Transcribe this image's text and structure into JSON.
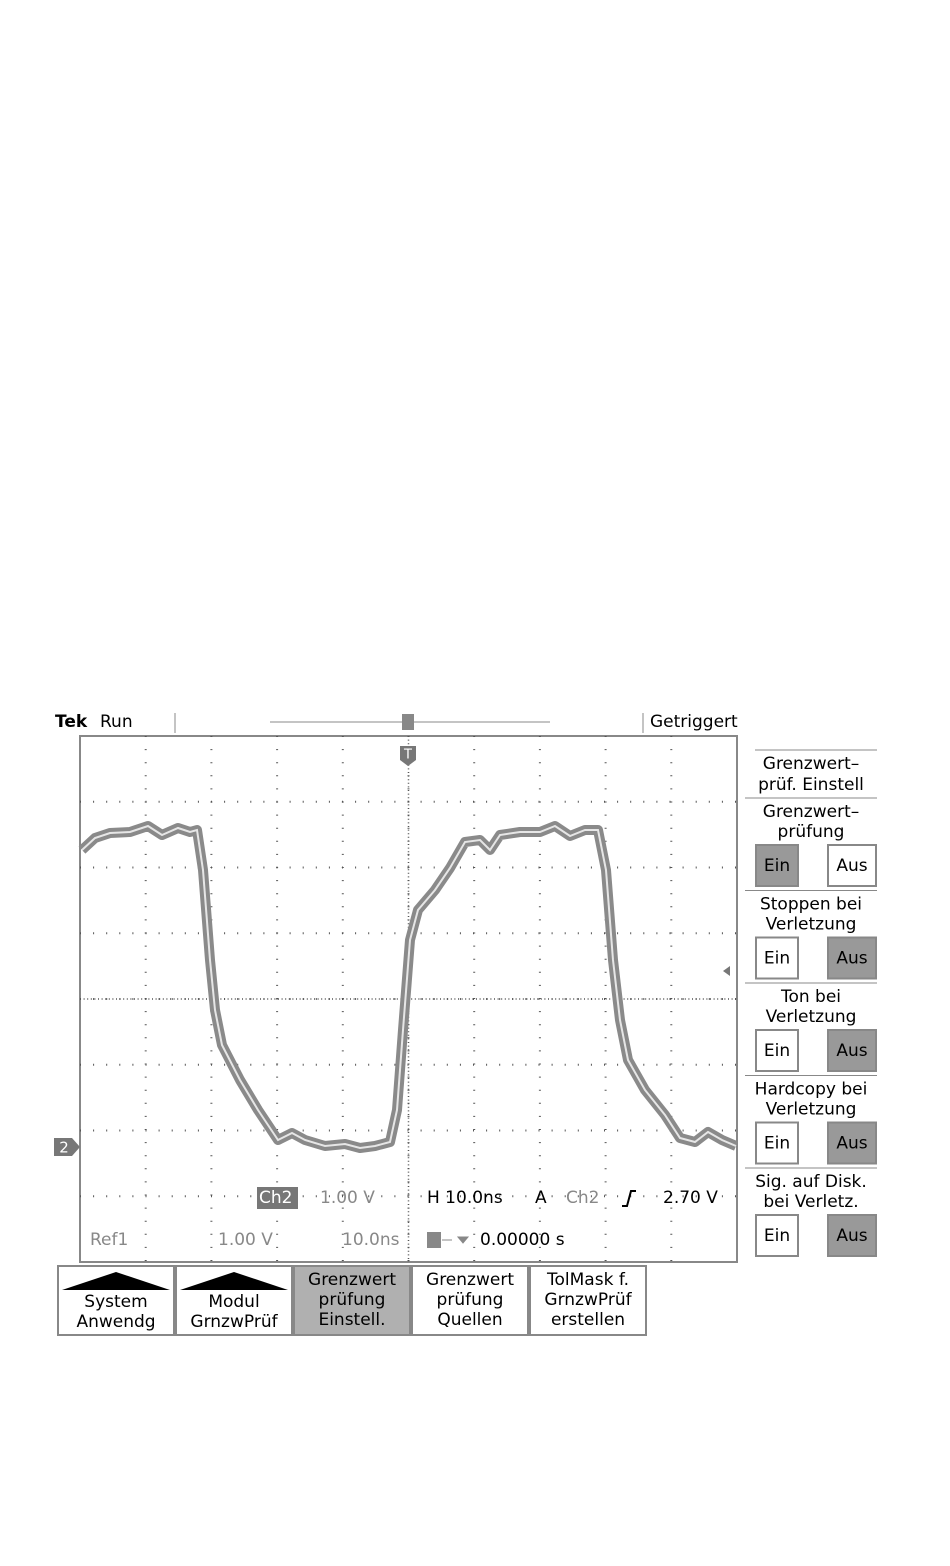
{
  "header": {
    "brand": "Tek",
    "status": "Run",
    "trigger_state": "Getriggert"
  },
  "markers": {
    "ground": "2",
    "trigger": "T"
  },
  "readouts": {
    "row1": [
      "Ch2",
      "1.00 V",
      "H 10.0ns",
      "A",
      "Ch2",
      "2.70 V"
    ],
    "row2": [
      "Ref1",
      "1.00 V",
      "10.0ns",
      "0.00000 s"
    ]
  },
  "side_menu": {
    "title": [
      "Grenzwert–",
      "prüf. Einstell"
    ],
    "items": [
      {
        "label": [
          "Grenzwert–",
          "prüfung"
        ],
        "on": "Ein",
        "off": "Aus",
        "enabled": true
      },
      {
        "label": [
          "Stoppen bei",
          "Verletzung"
        ],
        "on": "Ein",
        "off": "Aus",
        "enabled": false
      },
      {
        "label": [
          "Ton bei",
          "Verletzung"
        ],
        "on": "Ein",
        "off": "Aus",
        "enabled": false
      },
      {
        "label": [
          "Hardcopy bei",
          "Verletzung"
        ],
        "on": "Ein",
        "off": "Aus",
        "enabled": false
      },
      {
        "label": [
          "Sig. auf Disk.",
          "bei Verletz."
        ],
        "on": "Ein",
        "off": "Aus",
        "enabled": false
      }
    ]
  },
  "bottom_menu": [
    {
      "lines": [
        "System",
        "Anwendg"
      ],
      "selected": false,
      "arrow": true
    },
    {
      "lines": [
        "Modul",
        "GrnzwPrüf"
      ],
      "selected": false,
      "arrow": true
    },
    {
      "lines": [
        "Grenzwert",
        "prüfung",
        "Einstell."
      ],
      "selected": true,
      "arrow": false
    },
    {
      "lines": [
        "Grenzwert",
        "prüfung",
        "Quellen"
      ],
      "selected": false,
      "arrow": false
    },
    {
      "lines": [
        "TolMask f.",
        "GrnzwPrüf",
        "erstellen"
      ],
      "selected": false,
      "arrow": false
    }
  ]
}
